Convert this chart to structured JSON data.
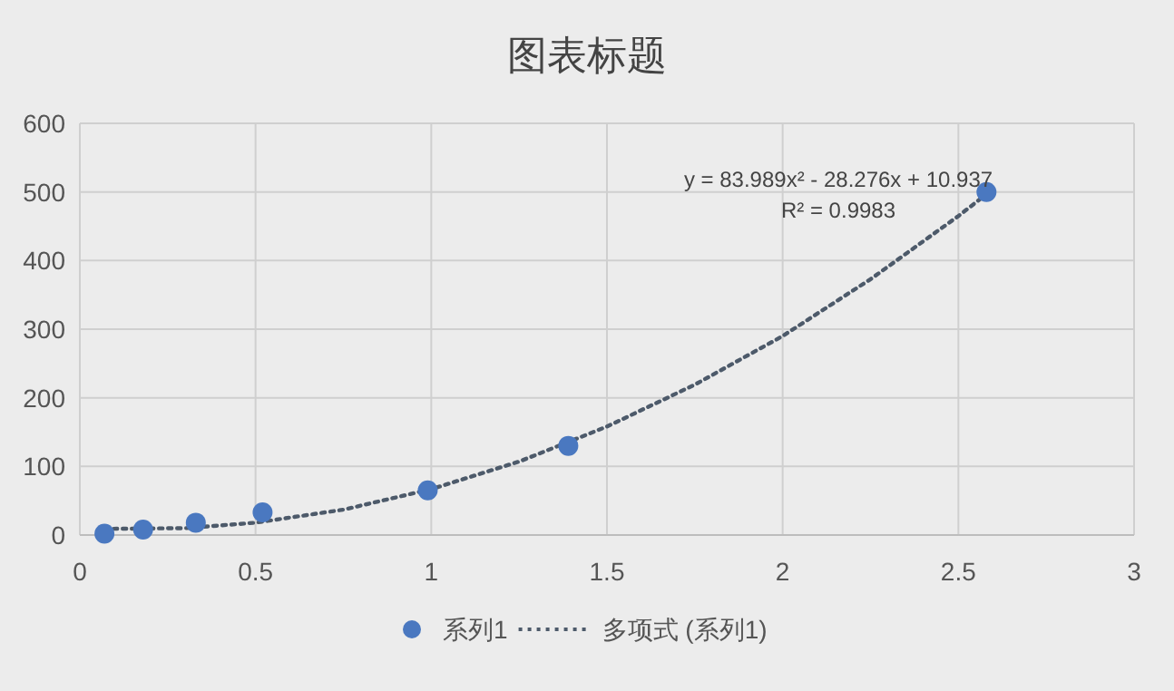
{
  "chart_data": {
    "type": "scatter",
    "title": "图表标题",
    "series": [
      {
        "name": "系列1",
        "marker": "circle",
        "color": "#4a78c0",
        "x": [
          0.07,
          0.18,
          0.33,
          0.52,
          0.99,
          1.39,
          2.58
        ],
        "values": [
          2,
          8,
          18,
          33,
          65,
          130,
          500
        ]
      },
      {
        "name": "多项式 (系列1)",
        "type": "line",
        "line_style": "dotted",
        "color": "#4d5a6a",
        "x": [
          0.07,
          0.3,
          0.5,
          0.75,
          1,
          1.25,
          1.5,
          1.75,
          2,
          2.25,
          2.5,
          2.58
        ],
        "values": [
          9,
          10,
          18,
          37,
          67,
          107,
          158,
          219,
          290,
          373,
          465,
          497
        ]
      }
    ],
    "annotations": [
      "y = 83.989x² - 28.276x + 10.937",
      "R² = 0.9983"
    ],
    "xlim": [
      0,
      3
    ],
    "xticks": [
      0,
      0.5,
      1,
      1.5,
      2,
      2.5,
      3
    ],
    "ylim": [
      0,
      600
    ],
    "yticks": [
      0,
      100,
      200,
      300,
      400,
      500,
      600
    ],
    "grid": true,
    "legend": "bottom"
  }
}
